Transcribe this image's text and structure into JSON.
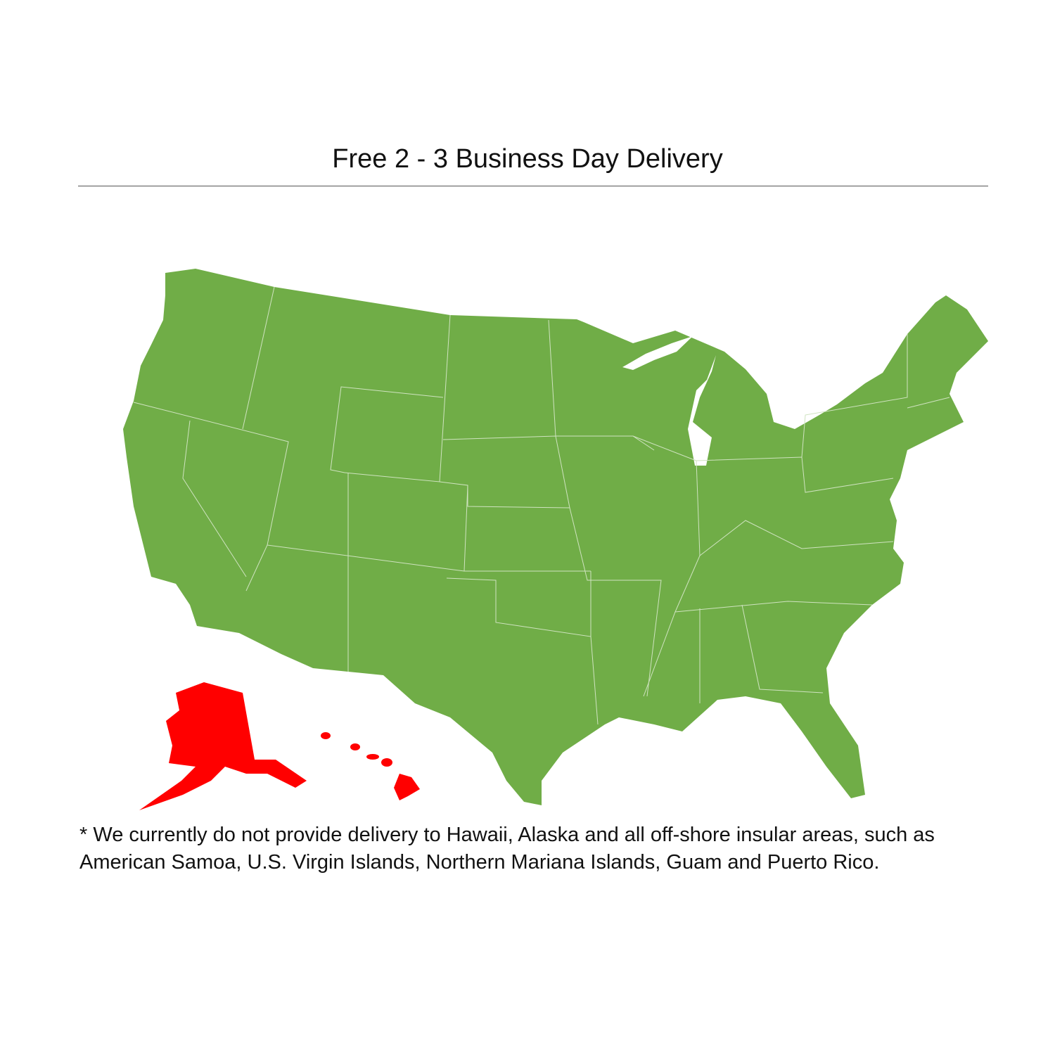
{
  "title": "Free 2 - 3 Business Day Delivery",
  "map": {
    "regions": [
      {
        "name": "Contiguous United States",
        "status": "delivery",
        "color": "#70AD47"
      },
      {
        "name": "Alaska",
        "status": "no delivery",
        "color": "#FF0000"
      },
      {
        "name": "Hawaii",
        "status": "no delivery",
        "color": "#FF0000"
      }
    ]
  },
  "footnote": "* We currently do not provide delivery to Hawaii, Alaska and all off-shore insular areas, such as American Samoa, U.S. Virgin Islands, Northern Mariana Islands, Guam and Puerto Rico."
}
